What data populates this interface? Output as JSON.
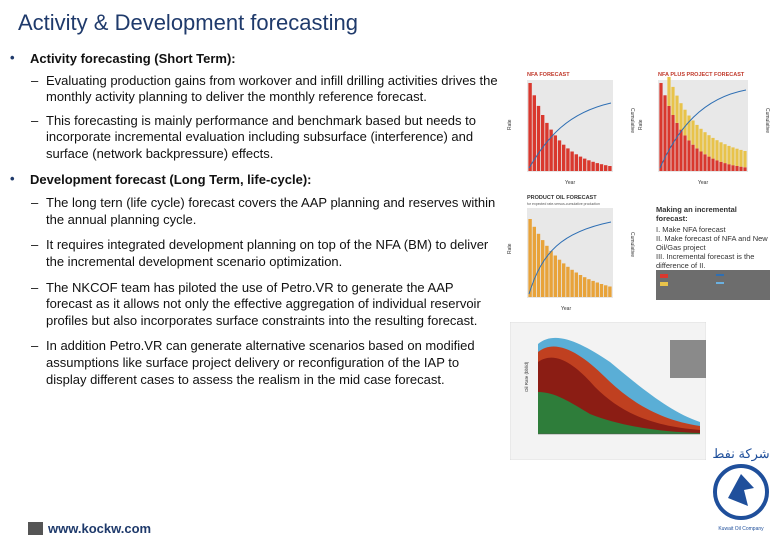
{
  "slide": {
    "title": "Activity & Development forecasting",
    "bullets": [
      {
        "text": "Activity forecasting (Short Term):",
        "subs": [
          "Evaluating production gains from workover and infill drilling activities drives the monthly activity planning to deliver the monthly reference forecast.",
          "This forecasting is mainly performance and benchmark based but needs to incorporate incremental evaluation including subsurface (interference) and surface (network backpressure) effects."
        ]
      },
      {
        "text": "Development forecast (Long Term, life-cycle):",
        "subs": [
          "The long tern (life cycle) forecast covers the AAP planning and reserves within the annual planning cycle.",
          "It requires integrated development planning on top of the NFA (BM) to deliver the incremental development scenario optimization.",
          "The NKCOF team has piloted the use of Petro.VR to generate the AAP forecast as it allows not only the effective aggregation of individual reservoir profiles but also incorporates surface constraints into the resulting forecast.",
          "In addition Petro.VR can generate alternative scenarios based on modified assumptions like surface project delivery or reconfiguration of the IAP to display different cases to assess the realism in the mid case forecast."
        ]
      }
    ],
    "website": "www.kockw.com",
    "bullet_glyph": "•",
    "dash_glyph": "–"
  },
  "figures": {
    "nfa": {
      "title": "NFA FORECAST",
      "ylabel": "Rate",
      "y2label": "Cumulative",
      "xlabel": "Year"
    },
    "nfa_plus": {
      "title": "NFA PLUS PROJECT FORECAST",
      "ylabel": "Rate",
      "y2label": "Cumulative",
      "xlabel": "Year"
    },
    "project_oil": {
      "title": "PRODUCT OIL FORECAST",
      "subtitle": "for expected rate-versus-cumulative production",
      "ylabel": "Rate",
      "y2label": "Cumulative",
      "xlabel": "Year"
    },
    "incremental_note": {
      "heading": "Making an incremental forecast:",
      "items": [
        "I. Make NFA forecast",
        "II. Make forecast of NFA and New Oil/Gas project",
        "III. Incremental forecast is the difference of II."
      ]
    },
    "area_chart": {
      "ylabel": "Oil Rate (bbl/d)"
    },
    "logo": {
      "text": "Kuwait Oil Company"
    }
  }
}
